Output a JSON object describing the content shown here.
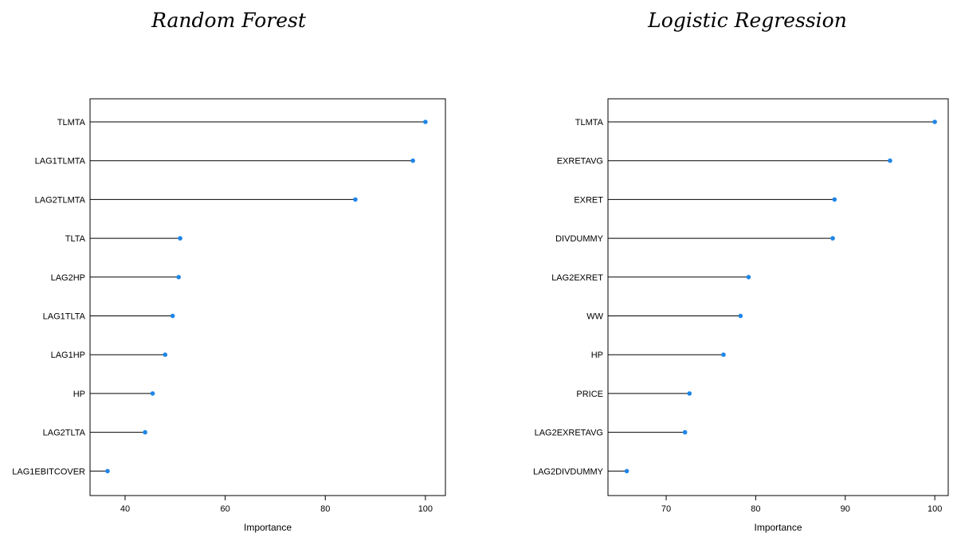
{
  "chart_data": [
    {
      "type": "dotplot",
      "title": "Random Forest",
      "xlabel": "Importance",
      "ylabel": "",
      "xlim": [
        33,
        104
      ],
      "xticks": [
        40,
        60,
        80,
        100
      ],
      "grid": false,
      "categories": [
        "TLMTA",
        "LAG1TLMTA",
        "LAG2TLMTA",
        "TLTA",
        "LAG2HP",
        "LAG1TLTA",
        "LAG1HP",
        "HP",
        "LAG2TLTA",
        "LAG1EBITCOVER"
      ],
      "values": [
        100,
        97.5,
        86,
        51,
        50.7,
        49.5,
        48,
        45.5,
        44,
        36.5
      ],
      "marker_color": "#1f86e8"
    },
    {
      "type": "dotplot",
      "title": "Logistic Regression",
      "xlabel": "Importance",
      "ylabel": "",
      "xlim": [
        63.5,
        101.5
      ],
      "xticks": [
        70,
        80,
        90,
        100
      ],
      "grid": false,
      "categories": [
        "TLMTA",
        "EXRETAVG",
        "EXRET",
        "DIVDUMMY",
        "LAG2EXRET",
        "WW",
        "HP",
        "PRICE",
        "LAG2EXRETAVG",
        "LAG2DIVDUMMY"
      ],
      "values": [
        100,
        95,
        88.8,
        88.6,
        79.2,
        78.3,
        76.4,
        72.6,
        72.1,
        65.6
      ],
      "marker_color": "#1f86e8"
    }
  ]
}
